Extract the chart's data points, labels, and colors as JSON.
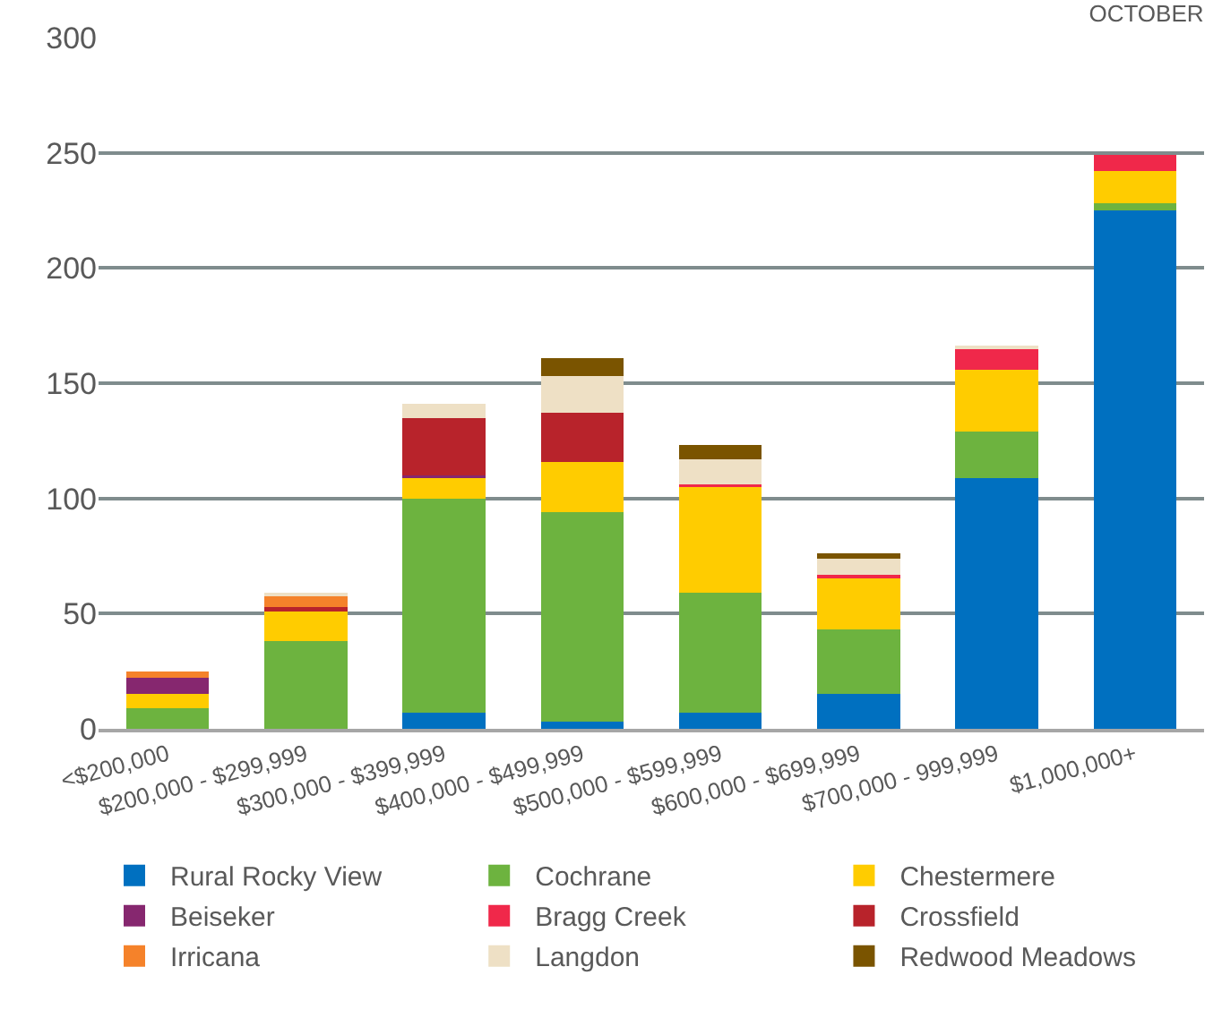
{
  "chart_data": {
    "type": "bar",
    "title": "OCTOBER",
    "stacked": true,
    "categories": [
      "<$200,000",
      "$200,000 - $299,999",
      "$300,000 - $399,999",
      "$400,000 - $499,999",
      "$500,000 - $599,999",
      "$600,000 - $699,999",
      "$700,000 - 999,999",
      "$1,000,000+"
    ],
    "series": [
      {
        "name": "Rural Rocky View",
        "color": "#0070c0",
        "values": [
          0,
          0,
          7,
          3,
          7,
          15,
          109,
          225
        ]
      },
      {
        "name": "Cochrane",
        "color": "#6db33f",
        "values": [
          9,
          38,
          93,
          91,
          52,
          28,
          20,
          3
        ]
      },
      {
        "name": "Chestermere",
        "color": "#ffcc00",
        "values": [
          6,
          13,
          9,
          22,
          46,
          23,
          27,
          14
        ]
      },
      {
        "name": "Beiseker",
        "color": "#86276f",
        "values": [
          7,
          0,
          1,
          0,
          0,
          0,
          0,
          0
        ]
      },
      {
        "name": "Bragg Creek",
        "color": "#f0284a",
        "values": [
          0,
          0,
          0,
          0,
          1,
          1,
          9,
          7
        ]
      },
      {
        "name": "Crossfield",
        "color": "#b8232b",
        "values": [
          0,
          2,
          25,
          21,
          0,
          0,
          0,
          0
        ]
      },
      {
        "name": "Irricana",
        "color": "#f5822a",
        "values": [
          3,
          5,
          0,
          0,
          0,
          0,
          0,
          0
        ]
      },
      {
        "name": "Langdon",
        "color": "#eee0c5",
        "values": [
          0,
          1,
          6,
          16,
          11,
          7,
          1,
          0
        ]
      },
      {
        "name": "Redwood Meadows",
        "color": "#7a5400",
        "values": [
          0,
          0,
          0,
          8,
          6,
          2,
          0,
          0
        ]
      }
    ],
    "ylim": [
      0,
      300
    ],
    "yticks": [
      0,
      50,
      100,
      150,
      200,
      250,
      300
    ],
    "grid": "y",
    "legend": "bottom"
  }
}
